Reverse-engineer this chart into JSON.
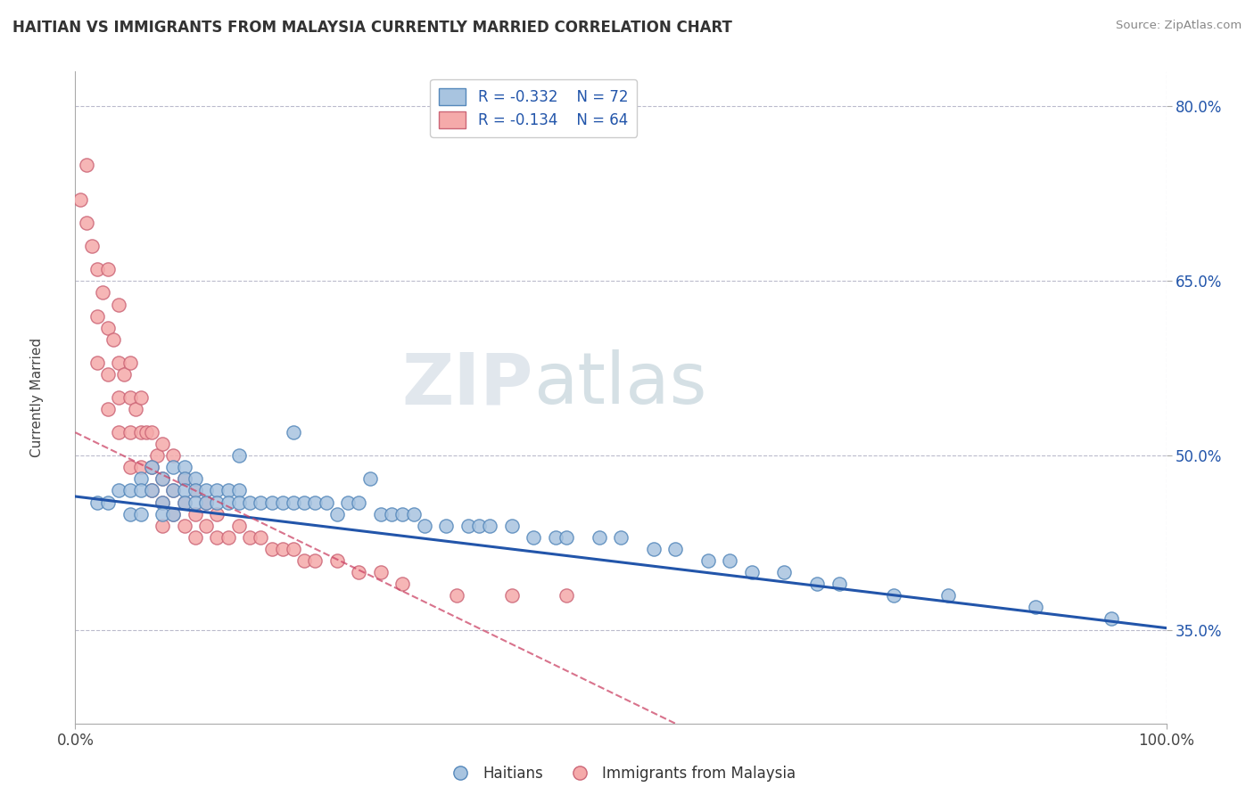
{
  "title": "HAITIAN VS IMMIGRANTS FROM MALAYSIA CURRENTLY MARRIED CORRELATION CHART",
  "source": "Source: ZipAtlas.com",
  "ylabel": "Currently Married",
  "xlim": [
    0.0,
    1.0
  ],
  "ylim": [
    0.27,
    0.83
  ],
  "y_tick_labels": [
    "35.0%",
    "50.0%",
    "65.0%",
    "80.0%"
  ],
  "y_tick_positions": [
    0.35,
    0.5,
    0.65,
    0.8
  ],
  "legend_label1": "R = -0.332    N = 72",
  "legend_label2": "R = -0.134    N = 64",
  "legend_footer1": "Haitians",
  "legend_footer2": "Immigrants from Malaysia",
  "color_blue": "#A8C4E0",
  "color_blue_edge": "#5588BB",
  "color_blue_line": "#2255AA",
  "color_pink": "#F5AAAA",
  "color_pink_edge": "#CC6677",
  "color_pink_line": "#CC4466",
  "watermark_zip": "ZIP",
  "watermark_atlas": "atlas",
  "background_color": "#FFFFFF",
  "grid_color": "#BBBBCC",
  "blue_trend_x0": 0.0,
  "blue_trend_y0": 0.465,
  "blue_trend_x1": 1.0,
  "blue_trend_y1": 0.352,
  "pink_trend_x0": 0.0,
  "pink_trend_y0": 0.52,
  "pink_trend_x1": 0.55,
  "pink_trend_y1": 0.27,
  "blue_scatter_x": [
    0.02,
    0.03,
    0.04,
    0.05,
    0.05,
    0.06,
    0.06,
    0.06,
    0.07,
    0.07,
    0.08,
    0.08,
    0.08,
    0.09,
    0.09,
    0.09,
    0.1,
    0.1,
    0.1,
    0.1,
    0.11,
    0.11,
    0.11,
    0.12,
    0.12,
    0.13,
    0.13,
    0.14,
    0.14,
    0.15,
    0.15,
    0.16,
    0.17,
    0.18,
    0.19,
    0.2,
    0.21,
    0.22,
    0.23,
    0.24,
    0.25,
    0.26,
    0.28,
    0.29,
    0.3,
    0.31,
    0.32,
    0.34,
    0.36,
    0.37,
    0.38,
    0.4,
    0.42,
    0.44,
    0.45,
    0.48,
    0.5,
    0.53,
    0.55,
    0.58,
    0.6,
    0.62,
    0.65,
    0.68,
    0.7,
    0.75,
    0.8,
    0.88,
    0.95,
    0.15,
    0.2,
    0.27
  ],
  "blue_scatter_y": [
    0.46,
    0.46,
    0.47,
    0.47,
    0.45,
    0.48,
    0.47,
    0.45,
    0.49,
    0.47,
    0.48,
    0.46,
    0.45,
    0.49,
    0.47,
    0.45,
    0.49,
    0.48,
    0.47,
    0.46,
    0.48,
    0.47,
    0.46,
    0.47,
    0.46,
    0.47,
    0.46,
    0.47,
    0.46,
    0.47,
    0.46,
    0.46,
    0.46,
    0.46,
    0.46,
    0.46,
    0.46,
    0.46,
    0.46,
    0.45,
    0.46,
    0.46,
    0.45,
    0.45,
    0.45,
    0.45,
    0.44,
    0.44,
    0.44,
    0.44,
    0.44,
    0.44,
    0.43,
    0.43,
    0.43,
    0.43,
    0.43,
    0.42,
    0.42,
    0.41,
    0.41,
    0.4,
    0.4,
    0.39,
    0.39,
    0.38,
    0.38,
    0.37,
    0.36,
    0.5,
    0.52,
    0.48
  ],
  "pink_scatter_x": [
    0.005,
    0.01,
    0.01,
    0.015,
    0.02,
    0.02,
    0.02,
    0.025,
    0.03,
    0.03,
    0.03,
    0.03,
    0.035,
    0.04,
    0.04,
    0.04,
    0.04,
    0.045,
    0.05,
    0.05,
    0.05,
    0.05,
    0.055,
    0.06,
    0.06,
    0.06,
    0.065,
    0.07,
    0.07,
    0.07,
    0.075,
    0.08,
    0.08,
    0.08,
    0.08,
    0.09,
    0.09,
    0.09,
    0.1,
    0.1,
    0.1,
    0.11,
    0.11,
    0.11,
    0.12,
    0.12,
    0.13,
    0.13,
    0.14,
    0.15,
    0.16,
    0.17,
    0.18,
    0.19,
    0.2,
    0.21,
    0.22,
    0.24,
    0.26,
    0.28,
    0.3,
    0.35,
    0.4,
    0.45
  ],
  "pink_scatter_y": [
    0.72,
    0.75,
    0.7,
    0.68,
    0.66,
    0.62,
    0.58,
    0.64,
    0.66,
    0.61,
    0.57,
    0.54,
    0.6,
    0.63,
    0.58,
    0.55,
    0.52,
    0.57,
    0.58,
    0.55,
    0.52,
    0.49,
    0.54,
    0.55,
    0.52,
    0.49,
    0.52,
    0.52,
    0.49,
    0.47,
    0.5,
    0.51,
    0.48,
    0.46,
    0.44,
    0.5,
    0.47,
    0.45,
    0.48,
    0.46,
    0.44,
    0.47,
    0.45,
    0.43,
    0.46,
    0.44,
    0.45,
    0.43,
    0.43,
    0.44,
    0.43,
    0.43,
    0.42,
    0.42,
    0.42,
    0.41,
    0.41,
    0.41,
    0.4,
    0.4,
    0.39,
    0.38,
    0.38,
    0.38
  ]
}
